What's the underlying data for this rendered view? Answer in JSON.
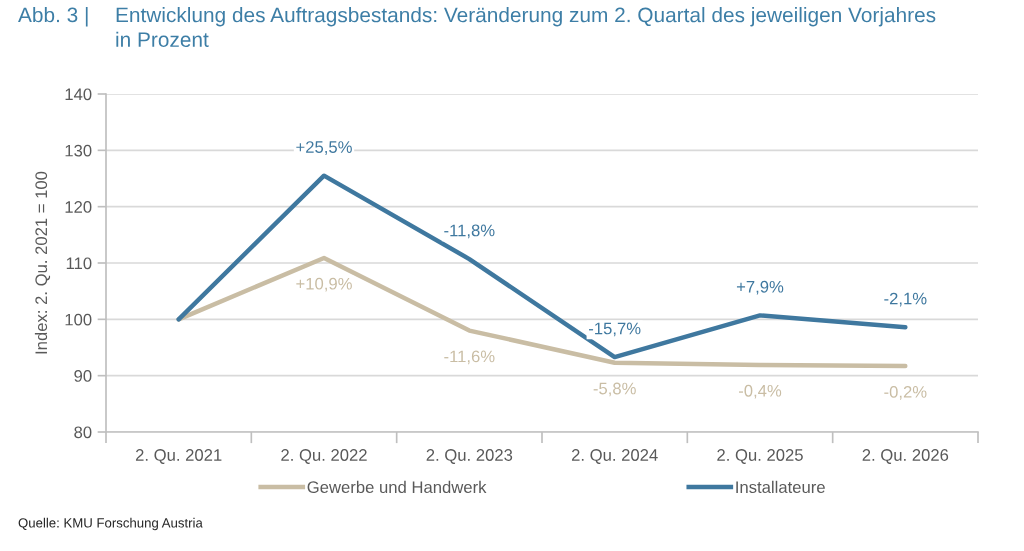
{
  "chart_data": {
    "type": "line",
    "title": "Entwicklung des Auftragsbestands: Veränderung zum 2. Quartal des jeweiligen Vorjahres\nin Prozent",
    "ylabel": "Index: 2. Qu. 2021 = 100",
    "annotations": [
      "Abb. 3 |",
      "Quelle: KMU Forschung Austria",
      {
        "text": "+10,9%",
        "x": "2. Qu. 2022",
        "y": 110.9
      },
      {
        "text": "-11,6%",
        "x": "2. Qu. 2023",
        "y": 98.0
      },
      {
        "text": "-5,8%",
        "x": "2. Qu. 2024",
        "y": 92.3
      },
      {
        "text": "-0,4%",
        "x": "2. Qu. 2025",
        "y": 91.9
      },
      {
        "text": "-0,2%",
        "x": "2. Qu. 2026",
        "y": 91.7
      },
      {
        "text": "+25,5%",
        "x": "2. Qu. 2022",
        "y": 125.5
      },
      {
        "text": "-11,8%",
        "x": "2. Qu. 2023",
        "y": 110.7
      },
      {
        "text": "-15,7%",
        "x": "2. Qu. 2024",
        "y": 93.3
      },
      {
        "text": "+7,9%",
        "x": "2. Qu. 2025",
        "y": 100.7
      },
      {
        "text": "-2,1%",
        "x": "2. Qu. 2026",
        "y": 98.6
      }
    ],
    "categories": [
      "2. Qu. 2021",
      "2. Qu. 2022",
      "2. Qu. 2023",
      "2. Qu. 2024",
      "2. Qu. 2025",
      "2. Qu. 2026"
    ],
    "series": [
      {
        "name": "Gewerbe und Handwerk",
        "color": "#c9bda4",
        "values": [
          100,
          110.9,
          98.0,
          92.3,
          91.9,
          91.7
        ]
      },
      {
        "name": "Installateure",
        "color": "#3f789f",
        "values": [
          100,
          125.5,
          110.7,
          93.3,
          100.7,
          98.6
        ]
      }
    ],
    "ylim": [
      80,
      140
    ],
    "yticks": [
      80,
      90,
      100,
      110,
      120,
      130,
      140
    ],
    "grid": "y",
    "legend": "bottom",
    "marker": "none",
    "line_style": "solid"
  }
}
